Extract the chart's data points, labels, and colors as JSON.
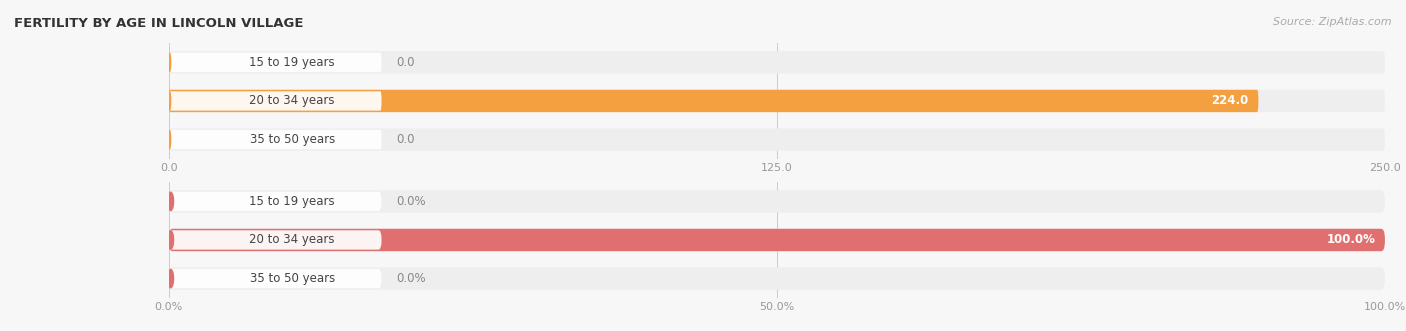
{
  "title": "FERTILITY BY AGE IN LINCOLN VILLAGE",
  "source": "Source: ZipAtlas.com",
  "top_chart": {
    "categories": [
      "15 to 19 years",
      "20 to 34 years",
      "35 to 50 years"
    ],
    "values": [
      0.0,
      224.0,
      0.0
    ],
    "max_val": 250.0,
    "xlim": [
      0,
      250.0
    ],
    "xticks": [
      0.0,
      125.0,
      250.0
    ],
    "xtick_labels": [
      "0.0",
      "125.0",
      "250.0"
    ],
    "bar_color": "#F5A040",
    "bar_bg_color": "#eeeeee",
    "pill_bg_color": "#f0f0f0",
    "label_pill_color": "#ffffff",
    "label_dot_color": "#F5A040",
    "value_labels": [
      "0.0",
      "224.0",
      "0.0"
    ],
    "value_inside": [
      false,
      true,
      false
    ]
  },
  "bottom_chart": {
    "categories": [
      "15 to 19 years",
      "20 to 34 years",
      "35 to 50 years"
    ],
    "values": [
      0.0,
      100.0,
      0.0
    ],
    "max_val": 100.0,
    "xlim": [
      0,
      100.0
    ],
    "xticks": [
      0.0,
      50.0,
      100.0
    ],
    "xtick_labels": [
      "0.0%",
      "50.0%",
      "100.0%"
    ],
    "bar_color": "#E07070",
    "bar_bg_color": "#eeeeee",
    "pill_bg_color": "#f0f0f0",
    "label_pill_color": "#ffffff",
    "label_dot_color": "#E07070",
    "value_labels": [
      "0.0%",
      "100.0%",
      "0.0%"
    ],
    "value_inside": [
      false,
      true,
      false
    ]
  },
  "fig_bg_color": "#f7f7f7",
  "title_fontsize": 9.5,
  "label_fontsize": 8.5,
  "tick_fontsize": 8,
  "source_fontsize": 8
}
